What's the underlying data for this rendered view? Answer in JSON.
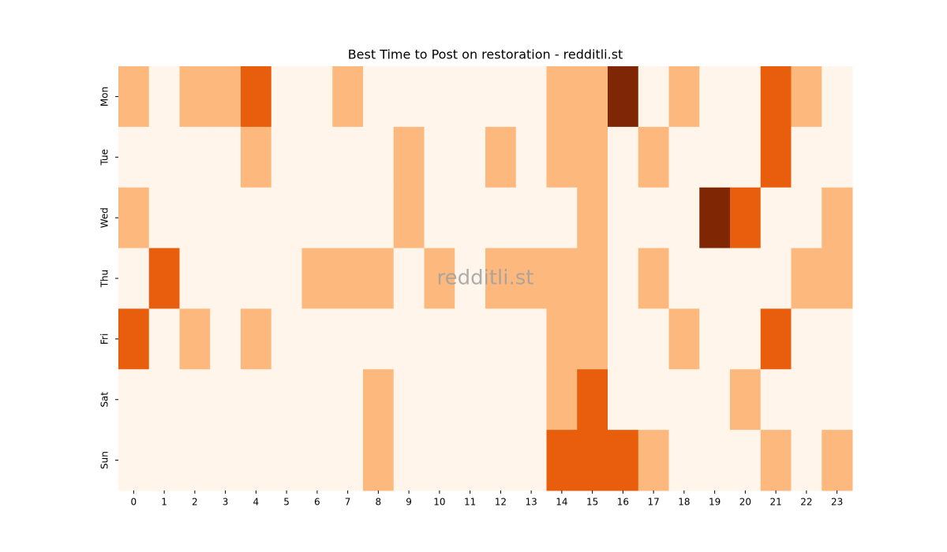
{
  "chart_data": {
    "type": "heatmap",
    "title": "Best Time to Post on restoration - redditli.st",
    "watermark": "redditli.st",
    "x": [
      "0",
      "1",
      "2",
      "3",
      "4",
      "5",
      "6",
      "7",
      "8",
      "9",
      "10",
      "11",
      "12",
      "13",
      "14",
      "15",
      "16",
      "17",
      "18",
      "19",
      "20",
      "21",
      "22",
      "23"
    ],
    "y": [
      "Mon",
      "Tue",
      "Wed",
      "Thu",
      "Fri",
      "Sat",
      "Sun"
    ],
    "values": [
      [
        1,
        0,
        1,
        1,
        2,
        0,
        0,
        1,
        0,
        0,
        0,
        0,
        0,
        0,
        1,
        1,
        3,
        0,
        1,
        0,
        0,
        2,
        1,
        0
      ],
      [
        0,
        0,
        0,
        0,
        1,
        0,
        0,
        0,
        0,
        1,
        0,
        0,
        1,
        0,
        1,
        1,
        0,
        1,
        0,
        0,
        0,
        2,
        0,
        0
      ],
      [
        1,
        0,
        0,
        0,
        0,
        0,
        0,
        0,
        0,
        1,
        0,
        0,
        0,
        0,
        0,
        1,
        0,
        0,
        0,
        3,
        2,
        0,
        0,
        1
      ],
      [
        0,
        2,
        0,
        0,
        0,
        0,
        1,
        1,
        1,
        0,
        1,
        0,
        1,
        1,
        1,
        1,
        0,
        1,
        0,
        0,
        0,
        0,
        1,
        1
      ],
      [
        2,
        0,
        1,
        0,
        1,
        0,
        0,
        0,
        0,
        0,
        0,
        0,
        0,
        0,
        1,
        1,
        0,
        0,
        1,
        0,
        0,
        2,
        0,
        0
      ],
      [
        0,
        0,
        0,
        0,
        0,
        0,
        0,
        0,
        1,
        0,
        0,
        0,
        0,
        0,
        1,
        2,
        0,
        0,
        0,
        0,
        1,
        0,
        0,
        0
      ],
      [
        0,
        0,
        0,
        0,
        0,
        0,
        0,
        0,
        1,
        0,
        0,
        0,
        0,
        0,
        2,
        2,
        2,
        1,
        0,
        0,
        0,
        1,
        0,
        1
      ]
    ],
    "colormap": "Oranges",
    "colors": [
      "#fff5eb",
      "#fdb97d",
      "#e95e0d",
      "#7f2704"
    ]
  }
}
